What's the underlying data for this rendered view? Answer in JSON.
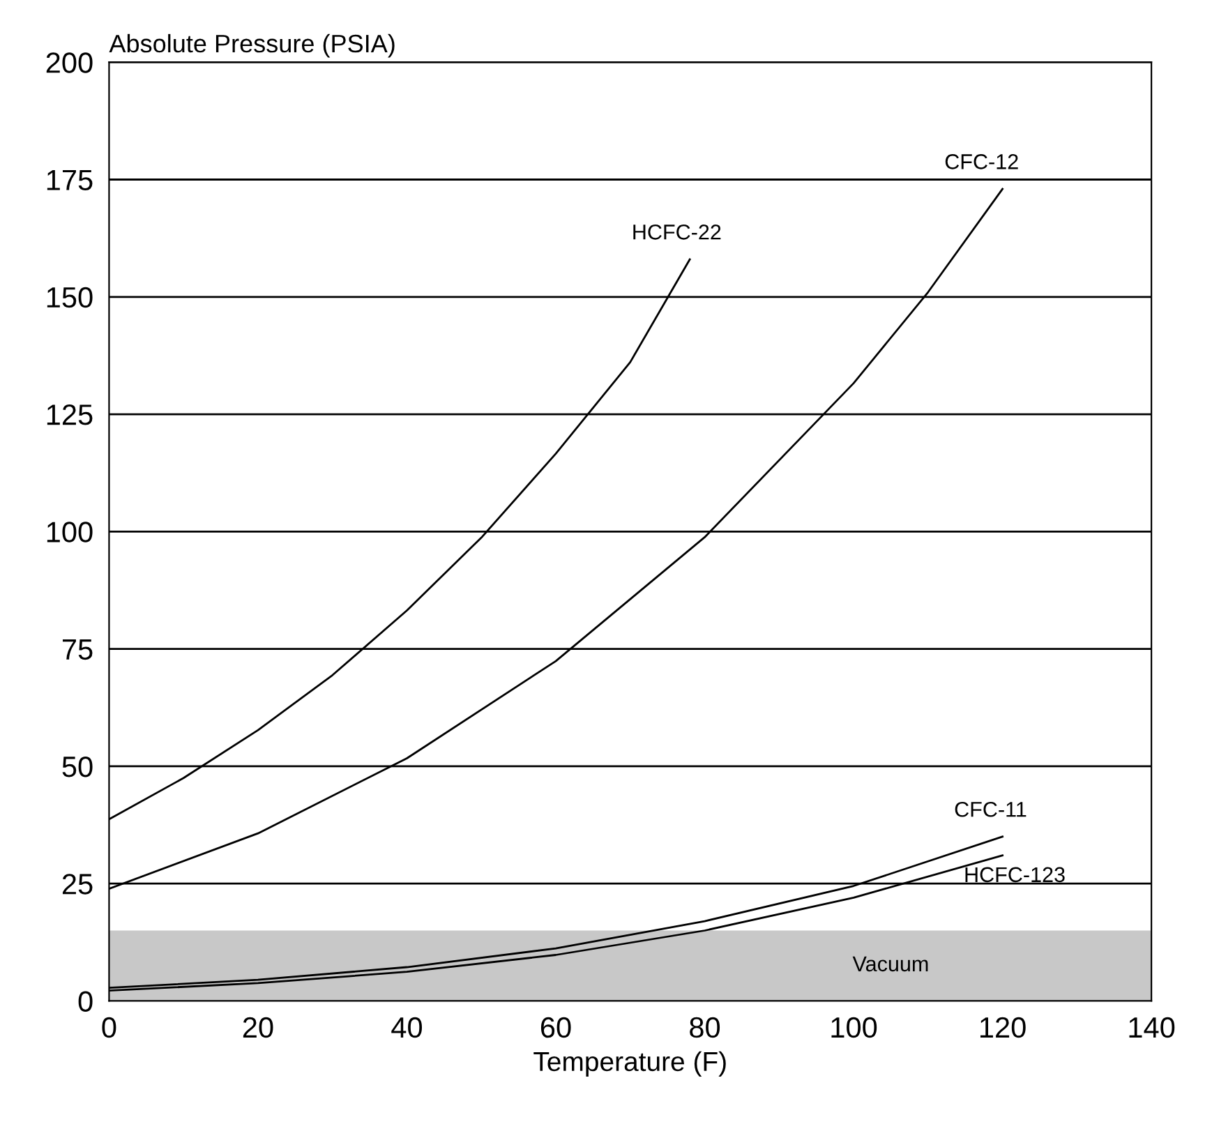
{
  "chart_data": {
    "type": "line",
    "xlabel": "Temperature (F)",
    "ylabel": "Absolute Pressure (PSIA)",
    "xlim": [
      0,
      140
    ],
    "xticks": [
      0,
      20,
      40,
      60,
      80,
      100,
      120,
      140
    ],
    "ylim": [
      0,
      200
    ],
    "yticks": [
      0,
      25,
      50,
      75,
      100,
      125,
      150,
      175,
      200
    ],
    "grid": "y",
    "marker": "none",
    "line_style": "solid",
    "series": [
      {
        "name": "HCFC-22",
        "color": "#000000",
        "x": [
          0,
          10,
          20,
          30,
          40,
          50,
          60,
          70,
          78
        ],
        "values": [
          38.7,
          47.5,
          57.7,
          69.4,
          83.2,
          98.7,
          116.6,
          136.1,
          158
        ]
      },
      {
        "name": "CFC-12",
        "color": "#000000",
        "x": [
          0,
          20,
          40,
          60,
          80,
          100,
          110,
          120
        ],
        "values": [
          23.9,
          35.7,
          51.7,
          72.4,
          98.8,
          131.6,
          151,
          173
        ]
      },
      {
        "name": "CFC-11",
        "color": "#000000",
        "x": [
          0,
          20,
          40,
          60,
          80,
          100,
          120
        ],
        "values": [
          2.8,
          4.5,
          7.2,
          11.2,
          17,
          24.5,
          35
        ]
      },
      {
        "name": "HCFC-123",
        "color": "#000000",
        "x": [
          0,
          20,
          40,
          60,
          80,
          100,
          120
        ],
        "values": [
          2.2,
          3.8,
          6.2,
          9.8,
          15,
          22,
          31
        ]
      }
    ],
    "bands": [
      {
        "axis": "y",
        "from": 0,
        "to": 15,
        "label": "Vacuum",
        "color": "#c8c8c8"
      }
    ]
  }
}
